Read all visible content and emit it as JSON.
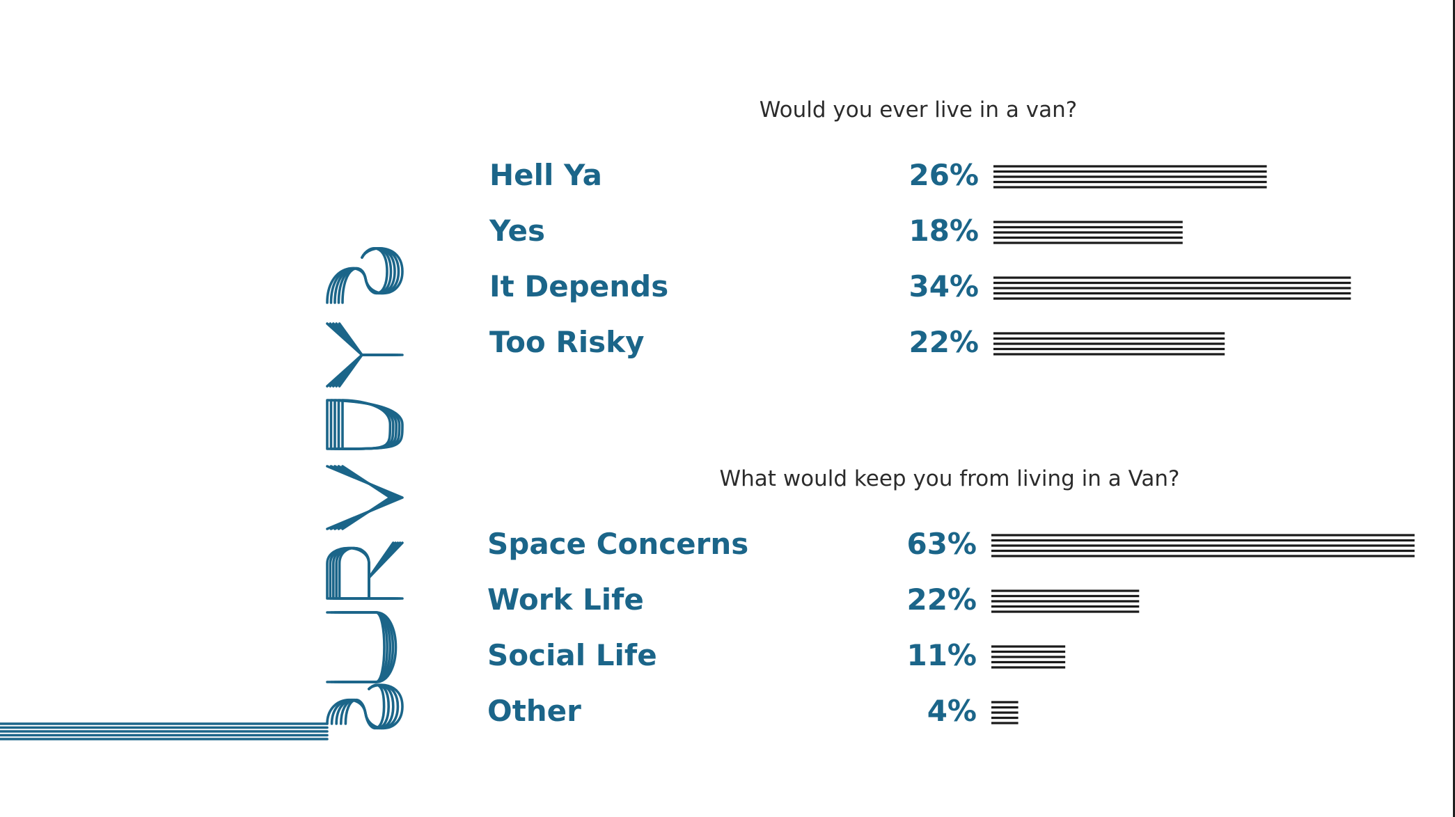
{
  "page": {
    "title_logo_text": "SURVEYS"
  },
  "colors": {
    "accent": "#1b6589",
    "bar": "#1a1a1a",
    "question_text": "#2b2b2b"
  },
  "chart_data": [
    {
      "type": "bar",
      "title": "Would you ever live in a van?",
      "categories": [
        "Hell Ya",
        "Yes",
        "It Depends",
        "Too Risky"
      ],
      "values": [
        26,
        18,
        34,
        22
      ],
      "value_labels": [
        "26%",
        "18%",
        "34%",
        "22%"
      ],
      "unit": "%",
      "orientation": "horizontal",
      "grid": false,
      "legend": "none"
    },
    {
      "type": "bar",
      "title": "What would keep you from living in a Van?",
      "categories": [
        "Space Concerns",
        "Work Life",
        "Social Life",
        "Other"
      ],
      "values": [
        63,
        22,
        11,
        4
      ],
      "value_labels": [
        "63%",
        "22%",
        "11%",
        "4%"
      ],
      "unit": "%",
      "orientation": "horizontal",
      "grid": false,
      "legend": "none"
    }
  ]
}
